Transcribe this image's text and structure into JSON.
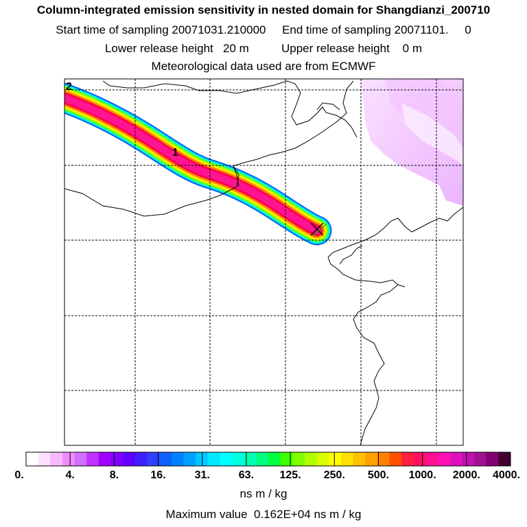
{
  "header": {
    "title": "Column-integrated emission sensitivity in nested domain for Shangdianzi_200710",
    "sampling": "Start time of sampling 20071031.210000     End time of sampling 20071101.     0",
    "release": "Lower release height   20 m          Upper release height    0 m",
    "met": "Meteorological data used are from ECMWF"
  },
  "map": {
    "label_one": "1",
    "label_two": "2",
    "grid": "dashed lat/lon lines",
    "receptor_marker": "x-marker",
    "plume_colors": [
      "#ff1493",
      "#ff0044",
      "#ff8800",
      "#ffee00",
      "#80ff00",
      "#00ffcc",
      "#0066ff",
      "#8800ff"
    ]
  },
  "colorbar": {
    "tick_labels": [
      "0.",
      "4.",
      "8.",
      "16.",
      "31.",
      "63.",
      "125.",
      "250.",
      "500.",
      "1000.",
      "2000.",
      "4000."
    ],
    "colors": [
      "#ffffff",
      "#fde0ff",
      "#f6b8ff",
      "#f08cff",
      "#d070ff",
      "#c030ff",
      "#a000ff",
      "#8000ff",
      "#6000ff",
      "#4020ff",
      "#3040ff",
      "#1060ff",
      "#0080ff",
      "#00a0ff",
      "#00c8ff",
      "#00e8ff",
      "#00ffff",
      "#00ffe0",
      "#00ffb0",
      "#00ff80",
      "#00ff40",
      "#40ff00",
      "#80ff00",
      "#b0ff00",
      "#d8ff00",
      "#ffff00",
      "#ffe000",
      "#ffc000",
      "#ffa000",
      "#ff8000",
      "#ff5000",
      "#ff2040",
      "#ff1060",
      "#ff1090",
      "#ff10b0",
      "#e010c0",
      "#c010b0",
      "#a01090",
      "#800070",
      "#400030"
    ],
    "units": "ns m / kg",
    "max_value": "Maximum value  0.162E+04 ns m / kg"
  }
}
